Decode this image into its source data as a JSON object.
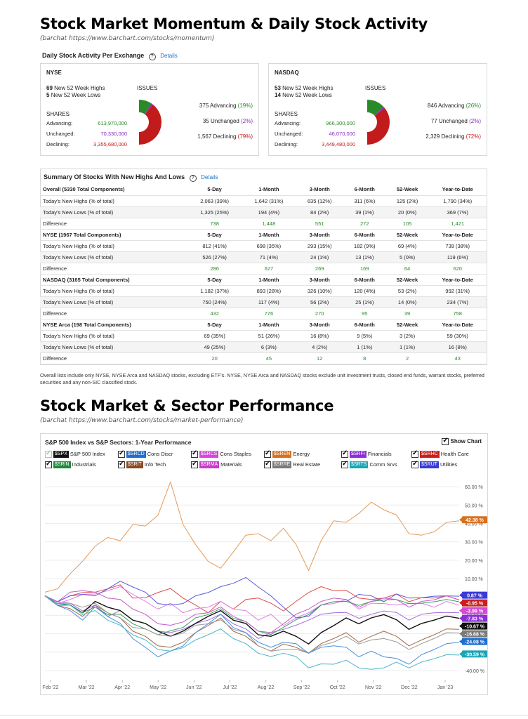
{
  "momentum": {
    "title": "Stock Market Momentum & Daily Stock Activity",
    "source": "(barchat https://www.barchart.com/stocks/momentum)",
    "activity_title": "Daily Stock Activity Per Exchange",
    "details_label": "Details",
    "exchanges": [
      {
        "name": "NYSE",
        "highs_count": "69",
        "highs_label": "New 52 Week Highs",
        "lows_count": "5",
        "lows_label": "New 52 Week Lows",
        "shares_label": "SHARES",
        "issues_label": "ISSUES",
        "advancing_label": "Advancing:",
        "advancing_shares": "613,970,000",
        "unchanged_label": "Unchanged:",
        "unchanged_shares": "70,330,000",
        "declining_label": "Declining:",
        "declining_shares": "3,355,680,000",
        "adv_issues": "375 Advancing",
        "adv_pct": "(19%)",
        "unch_issues": "35 Unchanged",
        "unch_pct": "(2%)",
        "decl_issues": "1,567 Declining",
        "decl_pct": "(79%)",
        "donut": [
          19,
          2,
          79
        ]
      },
      {
        "name": "NASDAQ",
        "highs_count": "53",
        "highs_label": "New 52 Week Highs",
        "lows_count": "14",
        "lows_label": "New 52 Week Lows",
        "shares_label": "SHARES",
        "issues_label": "ISSUES",
        "advancing_label": "Advancing:",
        "advancing_shares": "966,300,000",
        "unchanged_label": "Unchanged:",
        "unchanged_shares": "46,070,000",
        "declining_label": "Declining:",
        "declining_shares": "3,449,480,000",
        "adv_issues": "846 Advancing",
        "adv_pct": "(26%)",
        "unch_issues": "77 Unchanged",
        "unch_pct": "(2%)",
        "decl_issues": "2,329 Declining",
        "decl_pct": "(72%)",
        "donut": [
          26,
          2,
          72
        ]
      }
    ],
    "colors": {
      "advancing": "#2a8a2a",
      "unchanged": "#8a2bc2",
      "declining": "#c21b1b"
    }
  },
  "summary": {
    "title": "Summary Of Stocks With New Highs And Lows",
    "details_label": "Details",
    "columns": [
      "5-Day",
      "1-Month",
      "3-Month",
      "6-Month",
      "52-Week",
      "Year-to-Date"
    ],
    "groups": [
      {
        "header": "Overall (5330 Total Components)",
        "rows": [
          {
            "label": "Today's New Highs (% of total)",
            "values": [
              "2,063 (39%)",
              "1,642 (31%)",
              "635 (12%)",
              "311 (6%)",
              "125 (2%)",
              "1,790 (34%)"
            ]
          },
          {
            "label": "Today's New Lows (% of total)",
            "values": [
              "1,325 (25%)",
              "194 (4%)",
              "84 (2%)",
              "39 (1%)",
              "20 (0%)",
              "369 (7%)"
            ]
          },
          {
            "label": "Difference",
            "values": [
              "738",
              "1,448",
              "551",
              "272",
              "105",
              "1,421"
            ]
          }
        ]
      },
      {
        "header": "NYSE (1967 Total Components)",
        "rows": [
          {
            "label": "Today's New Highs (% of total)",
            "values": [
              "812 (41%)",
              "698 (35%)",
              "293 (15%)",
              "182 (9%)",
              "69 (4%)",
              "739 (38%)"
            ]
          },
          {
            "label": "Today's New Lows (% of total)",
            "values": [
              "526 (27%)",
              "71 (4%)",
              "24 (1%)",
              "13 (1%)",
              "5 (0%)",
              "119 (6%)"
            ]
          },
          {
            "label": "Difference",
            "values": [
              "286",
              "627",
              "269",
              "169",
              "64",
              "620"
            ]
          }
        ]
      },
      {
        "header": "NASDAQ (3165 Total Components)",
        "rows": [
          {
            "label": "Today's New Highs (% of total)",
            "values": [
              "1,182 (37%)",
              "893 (28%)",
              "326 (10%)",
              "120 (4%)",
              "53 (2%)",
              "992 (31%)"
            ]
          },
          {
            "label": "Today's New Lows (% of total)",
            "values": [
              "750 (24%)",
              "117 (4%)",
              "56 (2%)",
              "25 (1%)",
              "14 (0%)",
              "234 (7%)"
            ]
          },
          {
            "label": "Difference",
            "values": [
              "432",
              "776",
              "270",
              "95",
              "39",
              "758"
            ]
          }
        ]
      },
      {
        "header": "NYSE Arca (198 Total Components)",
        "rows": [
          {
            "label": "Today's New Highs (% of total)",
            "values": [
              "69 (35%)",
              "51 (26%)",
              "16 (8%)",
              "9 (5%)",
              "3 (2%)",
              "59 (30%)"
            ]
          },
          {
            "label": "Today's New Lows (% of total)",
            "values": [
              "49 (25%)",
              "6 (3%)",
              "4 (2%)",
              "1 (1%)",
              "1 (1%)",
              "16 (8%)"
            ]
          },
          {
            "label": "Difference",
            "values": [
              "20",
              "45",
              "12",
              "8",
              "2",
              "43"
            ]
          }
        ]
      }
    ],
    "note": "Overall lists include only NYSE, NYSE Arca and NASDAQ stocks, excluding ETF's. NYSE, NYSE Arca and NASDAQ stocks exclude unit investment trusts, closed end funds, warrant stocks, preferred securities and any non-SIC classified stock."
  },
  "performance": {
    "title": "Stock Market & Sector Performance",
    "source": "(barchat https://www.barchart.com/stocks/market-performance)",
    "chart_title": "S&P 500 Index vs S&P Sectors: 1-Year Performance",
    "show_chart_label": "Show Chart"
  },
  "chart_data": {
    "type": "line",
    "title": "S&P 500 Index vs S&P Sectors: 1-Year Performance",
    "x_ticks": [
      "Feb '22",
      "Mar '22",
      "Apr '22",
      "May '22",
      "Jun '22",
      "Jul '22",
      "Aug '22",
      "Sep '22",
      "Oct '22",
      "Nov '22",
      "Dec '22",
      "Jan '23"
    ],
    "y_ticks": [
      "60.00 %",
      "50.00 %",
      "40.00 %",
      "30.00 %",
      "20.00 %",
      "10.00 %",
      "-10.00 %",
      "-20.00 %",
      "-30.00 %",
      "-40.00 %"
    ],
    "ylim": [
      -45,
      65
    ],
    "legend": [
      {
        "symbol": "$SPX",
        "name": "S&P 500 Index",
        "color": "#111111",
        "checked": false
      },
      {
        "symbol": "$SRCD",
        "name": "Cons Discr",
        "color": "#1f6fd1",
        "checked": true
      },
      {
        "symbol": "$SRCS",
        "name": "Cons Staples",
        "color": "#d14bd6",
        "checked": true
      },
      {
        "symbol": "$SREN",
        "name": "Energy",
        "color": "#d9701c",
        "checked": true
      },
      {
        "symbol": "$SRFI",
        "name": "Financials",
        "color": "#8b2fd6",
        "checked": true
      },
      {
        "symbol": "$SRHC",
        "name": "Health Care",
        "color": "#c91f1f",
        "checked": true
      },
      {
        "symbol": "$SRIN",
        "name": "Industrials",
        "color": "#1f8a3a",
        "checked": true
      },
      {
        "symbol": "$SRIT",
        "name": "Info Tech",
        "color": "#8a4a22",
        "checked": true
      },
      {
        "symbol": "$SRMA",
        "name": "Materials",
        "color": "#c93cc9",
        "checked": true
      },
      {
        "symbol": "$SRRE",
        "name": "Real Estate",
        "color": "#7a7a7a",
        "checked": true
      },
      {
        "symbol": "$SRTS",
        "name": "Comm Srvs",
        "color": "#1aa6b5",
        "checked": true
      },
      {
        "symbol": "$SRUT",
        "name": "Utilities",
        "color": "#3a3ad6",
        "checked": true
      }
    ],
    "series": [
      {
        "symbol": "$SREN",
        "color": "#e39a5a",
        "end_label": "42.38 %",
        "label_bg": "#d9701c",
        "values": [
          2,
          5,
          12,
          20,
          27,
          33,
          30,
          40,
          38,
          45,
          62,
          40,
          28,
          20,
          15,
          25,
          33,
          35,
          30,
          38,
          28,
          15,
          30,
          42,
          40,
          46,
          51,
          48,
          44,
          35,
          33,
          36,
          40,
          42
        ]
      },
      {
        "symbol": "$SRHC",
        "color": "#e24a4a",
        "end_label": "-0.95 %",
        "label_bg": "#c91f1f",
        "values": [
          0,
          -2,
          0,
          3,
          2,
          5,
          6,
          0,
          -1,
          3,
          4,
          0,
          -5,
          -8,
          -3,
          -6,
          -2,
          0,
          -4,
          -7,
          -3,
          3,
          5,
          4,
          3,
          0,
          -2,
          0,
          1,
          -2,
          -1,
          0,
          0,
          -1
        ]
      },
      {
        "symbol": "$SRCS",
        "color": "#e07be3",
        "end_label": "-3.99 %",
        "label_bg": "#d14bd6",
        "values": [
          0,
          -3,
          -2,
          2,
          1,
          4,
          5,
          2,
          -3,
          -6,
          -4,
          -8,
          -7,
          -5,
          -3,
          -6,
          -8,
          -12,
          -10,
          -15,
          -12,
          -8,
          -5,
          -3,
          -2,
          -6,
          -4,
          -3,
          -5,
          -3,
          -4,
          -5,
          -3,
          -4
        ]
      },
      {
        "symbol": "$SRFI",
        "color": "#a768e0",
        "end_label": "-7.83 %",
        "label_bg": "#8b2fd6",
        "values": [
          0,
          -2,
          -4,
          -7,
          -5,
          -10,
          -8,
          -12,
          -15,
          -18,
          -20,
          -17,
          -15,
          -12,
          -10,
          -14,
          -18,
          -22,
          -20,
          -17,
          -16,
          -12,
          -10,
          -8,
          -9,
          -11,
          -10,
          -7,
          -9,
          -12,
          -10,
          -8,
          -9,
          -8
        ]
      },
      {
        "symbol": "$SPX",
        "color": "#111111",
        "end_label": "-10.67 %",
        "label_bg": "#111111",
        "values": [
          0,
          -3,
          -5,
          -8,
          -3,
          -5,
          -8,
          -12,
          -15,
          -18,
          -22,
          -18,
          -15,
          -10,
          -8,
          -12,
          -15,
          -20,
          -22,
          -18,
          -22,
          -25,
          -20,
          -15,
          -12,
          -14,
          -12,
          -9,
          -13,
          -17,
          -15,
          -12,
          -11,
          -11
        ]
      },
      {
        "symbol": "$SRUT",
        "color": "#5858e0",
        "end_label": "0.87 %",
        "label_bg": "#3a3ad6",
        "values": [
          0,
          -2,
          0,
          2,
          0,
          5,
          8,
          6,
          2,
          -3,
          -5,
          -3,
          0,
          3,
          5,
          8,
          10,
          6,
          0,
          -5,
          -12,
          -10,
          -5,
          -2,
          -3,
          2,
          0,
          -2,
          1,
          0,
          -1,
          1,
          0,
          1
        ]
      },
      {
        "symbol": "$SRIN",
        "color": "#3aa05a",
        "end_label": "",
        "label_bg": "#1f8a3a",
        "values": [
          0,
          -4,
          -5,
          -8,
          -6,
          -9,
          -10,
          -14,
          -18,
          -20,
          -19,
          -16,
          -12,
          -9,
          -7,
          -11,
          -14,
          -18,
          -21,
          -16,
          -13,
          -9,
          -5,
          -2,
          -3,
          -4,
          -3,
          -1,
          -2,
          -3,
          -4,
          -2,
          -2,
          -2
        ]
      },
      {
        "symbol": "$SRIT",
        "color": "#a06a48",
        "end_label": "-16.68 %",
        "label_bg": "#7a7a7a",
        "values": [
          0,
          -4,
          -7,
          -10,
          -5,
          -8,
          -12,
          -18,
          -22,
          -26,
          -28,
          -24,
          -20,
          -15,
          -12,
          -18,
          -22,
          -26,
          -30,
          -25,
          -28,
          -30,
          -26,
          -22,
          -20,
          -24,
          -22,
          -18,
          -22,
          -26,
          -24,
          -20,
          -18,
          -17
        ]
      },
      {
        "symbol": "$SRMA",
        "color": "#c55ac9",
        "end_label": "",
        "label_bg": "#c93cc9",
        "values": [
          0,
          -2,
          2,
          4,
          2,
          0,
          -2,
          -6,
          -10,
          -14,
          -16,
          -13,
          -10,
          -8,
          -6,
          -10,
          -14,
          -18,
          -20,
          -14,
          -10,
          -6,
          -3,
          0,
          -2,
          -5,
          -3,
          0,
          -2,
          -5,
          -3,
          -1,
          0,
          -1
        ]
      },
      {
        "symbol": "$SRRE",
        "color": "#9a9a9a",
        "end_label": "",
        "label_bg": "#7a7a7a",
        "values": [
          0,
          -3,
          -4,
          -5,
          -4,
          -8,
          -12,
          -16,
          -18,
          -20,
          -22,
          -19,
          -16,
          -14,
          -13,
          -17,
          -20,
          -26,
          -30,
          -28,
          -29,
          -30,
          -27,
          -24,
          -22,
          -25,
          -24,
          -22,
          -25,
          -28,
          -26,
          -22,
          -20,
          -19
        ]
      },
      {
        "symbol": "$SRCD",
        "color": "#4a8ee0",
        "end_label": "-24.08 %",
        "label_bg": "#1f6fd1",
        "values": [
          0,
          -4,
          -8,
          -12,
          -6,
          -10,
          -15,
          -22,
          -28,
          -32,
          -30,
          -26,
          -20,
          -14,
          -10,
          -16,
          -20,
          -24,
          -28,
          -24,
          -26,
          -30,
          -28,
          -26,
          -28,
          -32,
          -30,
          -32,
          -34,
          -36,
          -32,
          -28,
          -26,
          -24
        ]
      },
      {
        "symbol": "$SRTS",
        "color": "#4ab6c2",
        "end_label": "-30.59 %",
        "label_bg": "#1aa6b5",
        "values": [
          0,
          -3,
          -5,
          -9,
          -8,
          -12,
          -16,
          -20,
          -24,
          -28,
          -30,
          -27,
          -24,
          -20,
          -18,
          -22,
          -26,
          -30,
          -33,
          -30,
          -33,
          -38,
          -37,
          -36,
          -35,
          -38,
          -40,
          -38,
          -36,
          -38,
          -36,
          -33,
          -32,
          -31
        ]
      }
    ]
  }
}
